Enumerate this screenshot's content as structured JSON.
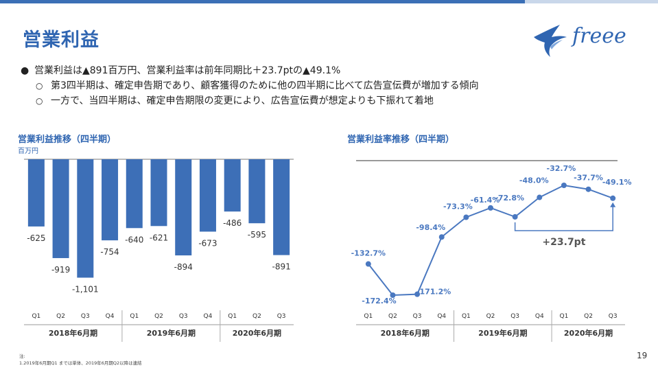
{
  "header": {
    "title": "営業利益"
  },
  "logo": {
    "brand": "freee"
  },
  "colors": {
    "accent": "#3b6fb6",
    "bar": "#3d6fb7",
    "line": "#4a78c0",
    "title": "#2f65b1",
    "text": "#333333"
  },
  "bullets": {
    "main": "営業利益は▲891百万円、営業利益率は前年同期比＋23.7ptの▲49.1%",
    "subs": [
      "第3四半期は、確定申告期であり、顧客獲得のために他の四半期に比べて広告宣伝費が増加する傾向",
      "一方で、当四半期は、確定申告期限の変更により、広告宣伝費が想定よりも下振れて着地"
    ],
    "main_symbol": "●",
    "sub_symbol": "○"
  },
  "chart_data": [
    {
      "type": "bar",
      "title": "営業利益推移（四半期）",
      "unit": "百万円",
      "categories": [
        "Q1",
        "Q2",
        "Q3",
        "Q4",
        "Q1",
        "Q2",
        "Q3",
        "Q4",
        "Q1",
        "Q2",
        "Q3"
      ],
      "groups": [
        {
          "label": "2018年6月期",
          "count": 4
        },
        {
          "label": "2019年6月期",
          "count": 4
        },
        {
          "label": "2020年6月期",
          "count": 3
        }
      ],
      "values": [
        -625,
        -919,
        -1101,
        -754,
        -640,
        -621,
        -894,
        -673,
        -486,
        -595,
        -891
      ],
      "value_labels": [
        "-625",
        "-919",
        "-1,101",
        "-754",
        "-640",
        "-621",
        "-894",
        "-673",
        "-486",
        "-595",
        "-891"
      ],
      "ylim": [
        -1200,
        0
      ]
    },
    {
      "type": "line",
      "title": "営業利益率推移（四半期）",
      "categories": [
        "Q1",
        "Q2",
        "Q3",
        "Q4",
        "Q1",
        "Q2",
        "Q3",
        "Q4",
        "Q1",
        "Q2",
        "Q3"
      ],
      "groups": [
        {
          "label": "2018年6月期",
          "count": 4
        },
        {
          "label": "2019年6月期",
          "count": 4
        },
        {
          "label": "2020年6月期",
          "count": 3
        }
      ],
      "values": [
        -132.7,
        -172.4,
        -171.2,
        -98.4,
        -73.3,
        -61.4,
        -72.8,
        -48.0,
        -32.7,
        -37.7,
        -49.1
      ],
      "value_labels": [
        "-132.7%",
        "-172.4%",
        "-171.2%",
        "-98.4%",
        "-73.3%",
        "-61.4%",
        "-72.8%",
        "-48.0%",
        "-32.7%",
        "-37.7%",
        "-49.1%"
      ],
      "ylim": [
        -180,
        0
      ],
      "annotation": "+23.7pt"
    }
  ],
  "footnote": {
    "lines": [
      "注:",
      "1.2019年6月期Q1 までは単体、2019年6月期Q2以降は連結"
    ]
  },
  "page_number": "19"
}
